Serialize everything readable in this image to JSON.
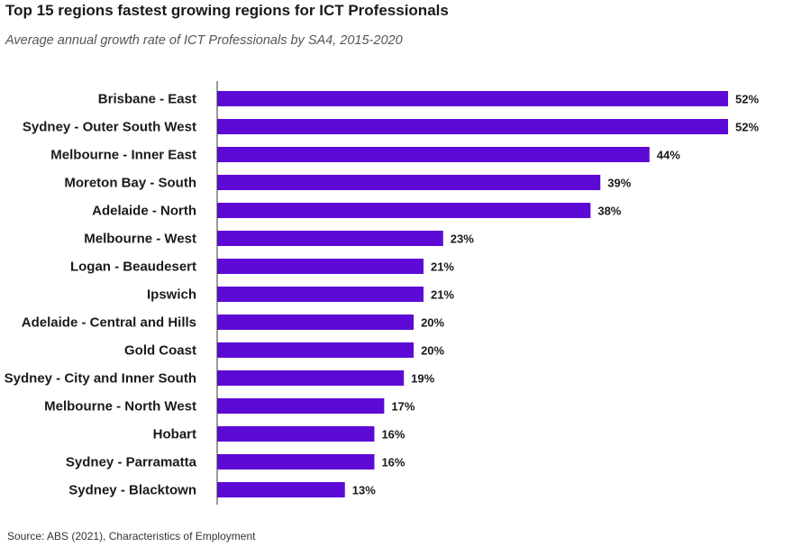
{
  "title": "Top 15 regions fastest growing regions for ICT Professionals",
  "subtitle": "Average annual growth rate of ICT Professionals by SA4, 2015-2020",
  "source": "Source: ABS (2021), Characteristics of Employment",
  "colors": {
    "bar": "#5d0ad6"
  },
  "chart_data": {
    "type": "bar",
    "orientation": "horizontal",
    "categories": [
      "Brisbane - East",
      "Sydney - Outer South West",
      "Melbourne - Inner East",
      "Moreton Bay - South",
      "Adelaide - North",
      "Melbourne - West",
      "Logan - Beaudesert",
      "Ipswich",
      "Adelaide - Central and Hills",
      "Gold Coast",
      "Sydney - City and Inner South",
      "Melbourne - North West",
      "Hobart",
      "Sydney - Parramatta",
      "Sydney - Blacktown"
    ],
    "values": [
      52,
      52,
      44,
      39,
      38,
      23,
      21,
      21,
      20,
      20,
      19,
      17,
      16,
      16,
      13
    ],
    "value_labels": [
      "52%",
      "52%",
      "44%",
      "39%",
      "38%",
      "23%",
      "21%",
      "21%",
      "20%",
      "20%",
      "19%",
      "17%",
      "16%",
      "16%",
      "13%"
    ],
    "unit": "%",
    "xlim": [
      0,
      52
    ],
    "grid": false,
    "legend": "none"
  }
}
